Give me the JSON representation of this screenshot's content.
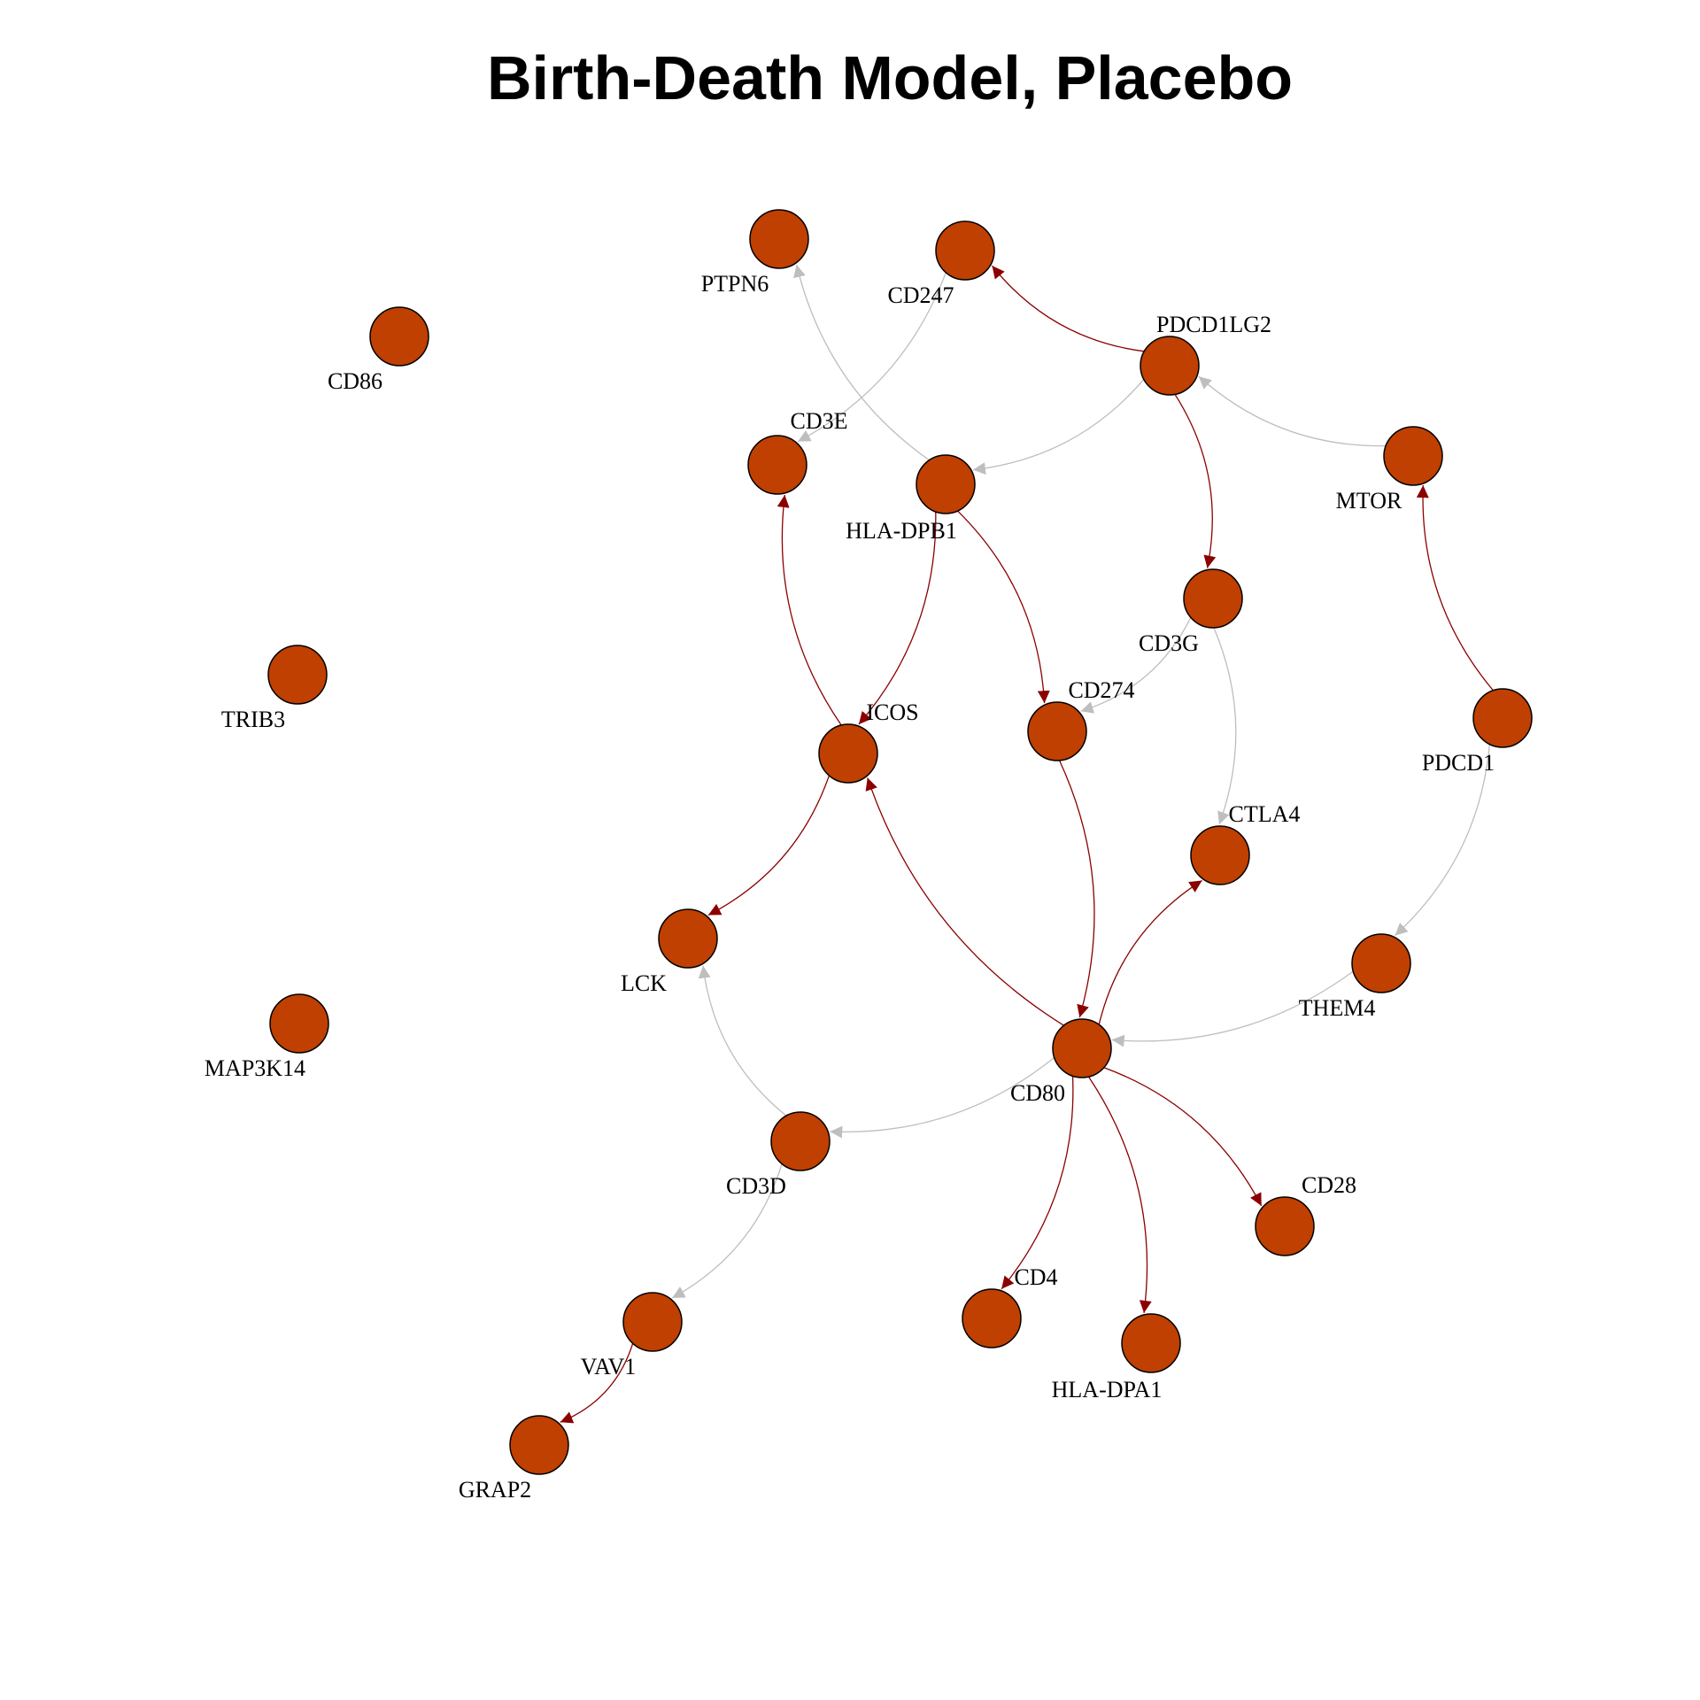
{
  "title": "Birth-Death Model, Placebo",
  "colors": {
    "node_fill": "#BF4000",
    "node_stroke": "#000000",
    "edge_strong": "#8B0000",
    "edge_weak": "#BEBEBE"
  },
  "nodes": [
    {
      "id": "PTPN6",
      "label": "PTPN6"
    },
    {
      "id": "CD247",
      "label": "CD247"
    },
    {
      "id": "CD86",
      "label": "CD86"
    },
    {
      "id": "PDCD1LG2",
      "label": "PDCD1LG2"
    },
    {
      "id": "CD3E",
      "label": "CD3E"
    },
    {
      "id": "HLA-DPB1",
      "label": "HLA-DPB1"
    },
    {
      "id": "MTOR",
      "label": "MTOR"
    },
    {
      "id": "CD3G",
      "label": "CD3G"
    },
    {
      "id": "TRIB3",
      "label": "TRIB3"
    },
    {
      "id": "PDCD1",
      "label": "PDCD1"
    },
    {
      "id": "CD274",
      "label": "CD274"
    },
    {
      "id": "ICOS",
      "label": "ICOS"
    },
    {
      "id": "CTLA4",
      "label": "CTLA4"
    },
    {
      "id": "LCK",
      "label": "LCK"
    },
    {
      "id": "THEM4",
      "label": "THEM4"
    },
    {
      "id": "MAP3K14",
      "label": "MAP3K14"
    },
    {
      "id": "CD80",
      "label": "CD80"
    },
    {
      "id": "CD3D",
      "label": "CD3D"
    },
    {
      "id": "CD28",
      "label": "CD28"
    },
    {
      "id": "VAV1",
      "label": "VAV1"
    },
    {
      "id": "CD4",
      "label": "CD4"
    },
    {
      "id": "HLA-DPA1",
      "label": "HLA-DPA1"
    },
    {
      "id": "GRAP2",
      "label": "GRAP2"
    }
  ],
  "edges": [
    {
      "from": "PDCD1LG2",
      "to": "CD247",
      "type": "strong"
    },
    {
      "from": "PDCD1LG2",
      "to": "CD3G",
      "type": "strong"
    },
    {
      "from": "PDCD1LG2",
      "to": "HLA-DPB1",
      "type": "weak"
    },
    {
      "from": "MTOR",
      "to": "PDCD1LG2",
      "type": "weak"
    },
    {
      "from": "PDCD1",
      "to": "MTOR",
      "type": "strong"
    },
    {
      "from": "PDCD1",
      "to": "THEM4",
      "type": "weak"
    },
    {
      "from": "HLA-DPB1",
      "to": "PTPN6",
      "type": "weak"
    },
    {
      "from": "HLA-DPB1",
      "to": "ICOS",
      "type": "strong"
    },
    {
      "from": "HLA-DPB1",
      "to": "CD274",
      "type": "strong"
    },
    {
      "from": "CD247",
      "to": "CD3E",
      "type": "weak"
    },
    {
      "from": "ICOS",
      "to": "CD3E",
      "type": "strong"
    },
    {
      "from": "ICOS",
      "to": "LCK",
      "type": "strong"
    },
    {
      "from": "CD3G",
      "to": "CD274",
      "type": "weak"
    },
    {
      "from": "CD3G",
      "to": "CTLA4",
      "type": "weak"
    },
    {
      "from": "CD274",
      "to": "CD80",
      "type": "strong"
    },
    {
      "from": "CD80",
      "to": "ICOS",
      "type": "strong"
    },
    {
      "from": "CD80",
      "to": "CTLA4",
      "type": "strong"
    },
    {
      "from": "THEM4",
      "to": "CD80",
      "type": "weak"
    },
    {
      "from": "CD80",
      "to": "CD3D",
      "type": "weak"
    },
    {
      "from": "CD80",
      "to": "CD28",
      "type": "strong"
    },
    {
      "from": "CD80",
      "to": "CD4",
      "type": "strong"
    },
    {
      "from": "CD80",
      "to": "HLA-DPA1",
      "type": "strong"
    },
    {
      "from": "CD3D",
      "to": "LCK",
      "type": "weak"
    },
    {
      "from": "CD3D",
      "to": "VAV1",
      "type": "weak"
    },
    {
      "from": "VAV1",
      "to": "GRAP2",
      "type": "strong"
    }
  ]
}
